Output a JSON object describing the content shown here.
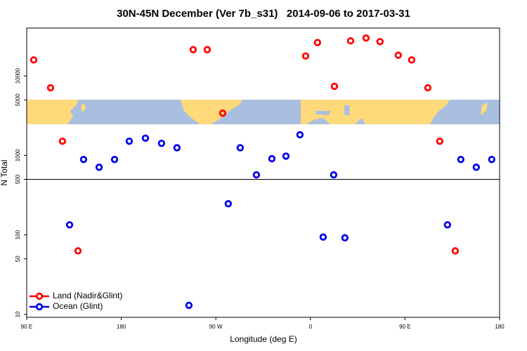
{
  "chart_data": {
    "type": "scatter",
    "title": "30N-45N December (Ver 7b_s31)   2014-09-06 to 2017-03-31",
    "x_label": "Longitude (deg E)",
    "y_label": "N Total",
    "xlim": [
      90,
      540
    ],
    "xticks": [
      {
        "value": 90,
        "label": "90 E"
      },
      180,
      {
        "value": 270,
        "label": "90 W"
      },
      {
        "value": 360,
        "label": "0"
      },
      {
        "value": 450,
        "label": "90 E"
      },
      {
        "value": 540,
        "label": "180"
      }
    ],
    "ylim": [
      9.2,
      40000
    ],
    "log_y": true,
    "yticks": [
      10,
      50,
      100,
      500,
      1000,
      5000,
      10000
    ],
    "hline": 500,
    "legend": "bottom-left",
    "series": [
      {
        "name": "Land (Nadir&Glint)",
        "color": "#ff0000",
        "x": [
          96.7,
          112.7,
          124,
          138.8,
          248.4,
          261.8,
          276.5,
          355.4,
          366.7,
          382.8,
          398.2,
          412.9,
          426.2,
          443.6,
          456.3,
          471.7,
          483,
          497.8
        ],
        "values": [
          15900,
          7100,
          1510,
          63,
          21400,
          21400,
          3400,
          17800,
          26300,
          7400,
          27600,
          30000,
          27000,
          18200,
          15900,
          7100,
          1510,
          63
        ]
      },
      {
        "name": "Ocean (Glint)",
        "color": "#0000ee",
        "x": [
          130.8,
          144.1,
          158.9,
          173.6,
          187.6,
          203,
          218.3,
          233,
          244.4,
          281.8,
          293.2,
          308.6,
          323.3,
          336.7,
          350,
          372.1,
          382.1,
          392.8,
          490.4,
          503.1,
          517.8,
          532.5
        ],
        "values": [
          134,
          890,
          710,
          890,
          1510,
          1650,
          1420,
          1250,
          13,
          247,
          1250,
          570,
          910,
          980,
          1820,
          94,
          570,
          92,
          134,
          890,
          710,
          890
        ]
      }
    ]
  }
}
